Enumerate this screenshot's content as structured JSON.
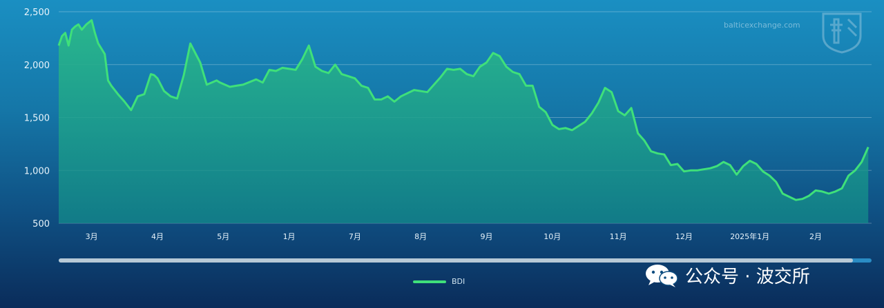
{
  "watermark": {
    "text": "balticexchange.com",
    "logo_icon": "baltic-exchange-logo-icon"
  },
  "legend": {
    "label": "BDI",
    "color": "#3fe07a"
  },
  "footer": {
    "wechat_text": "公众号 · 波交所",
    "icon": "wechat-icon"
  },
  "chart_data": {
    "type": "area",
    "ylim": [
      500,
      2500
    ],
    "yticks": [
      500,
      1000,
      1500,
      2000,
      2500
    ],
    "ytick_labels": [
      "500",
      "1,000",
      "1,500",
      "2,000",
      "2,500"
    ],
    "xlim": [
      0,
      12.35
    ],
    "xticks": [
      {
        "pos": 0.5,
        "label": "3月"
      },
      {
        "pos": 1.5,
        "label": "4月"
      },
      {
        "pos": 2.5,
        "label": "5月"
      },
      {
        "pos": 3.5,
        "label": "1月"
      },
      {
        "pos": 4.5,
        "label": "7月"
      },
      {
        "pos": 5.5,
        "label": "8月"
      },
      {
        "pos": 6.5,
        "label": "9月"
      },
      {
        "pos": 7.5,
        "label": "10月"
      },
      {
        "pos": 8.5,
        "label": "11月"
      },
      {
        "pos": 9.5,
        "label": "12月"
      },
      {
        "pos": 10.5,
        "label": "2025年1月"
      },
      {
        "pos": 11.5,
        "label": "2月"
      }
    ],
    "series": [
      {
        "name": "BDI",
        "color": "#3fe07a",
        "x": [
          0.0,
          0.05,
          0.1,
          0.15,
          0.2,
          0.25,
          0.3,
          0.35,
          0.42,
          0.5,
          0.55,
          0.6,
          0.7,
          0.75,
          0.8,
          0.9,
          1.0,
          1.1,
          1.2,
          1.3,
          1.4,
          1.45,
          1.5,
          1.6,
          1.7,
          1.8,
          1.9,
          2.0,
          2.1,
          2.15,
          2.25,
          2.4,
          2.45,
          2.6,
          2.7,
          2.8,
          3.0,
          3.1,
          3.2,
          3.3,
          3.4,
          3.5,
          3.6,
          3.7,
          3.8,
          3.9,
          4.0,
          4.1,
          4.2,
          4.3,
          4.4,
          4.5,
          4.6,
          4.7,
          4.8,
          4.9,
          5.0,
          5.1,
          5.2,
          5.4,
          5.6,
          5.8,
          5.9,
          6.0,
          6.1,
          6.2,
          6.3,
          6.4,
          6.5,
          6.6,
          6.7,
          6.8,
          6.9,
          7.0,
          7.1,
          7.2,
          7.3,
          7.4,
          7.5,
          7.6,
          7.7,
          7.8,
          7.9,
          8.0,
          8.1,
          8.2,
          8.3,
          8.4,
          8.5,
          8.6,
          8.7,
          8.8,
          8.9,
          9.0,
          9.1,
          9.2,
          9.3,
          9.4,
          9.5,
          9.6,
          9.7,
          9.8,
          9.9,
          10.0,
          10.1,
          10.2,
          10.3,
          10.4,
          10.5,
          10.6,
          10.7,
          10.8,
          10.9,
          11.0,
          11.1,
          11.2,
          11.3,
          11.4,
          11.5,
          11.6,
          11.7,
          11.8,
          11.9,
          12.0,
          12.1,
          12.2,
          12.3
        ],
        "values": [
          2180,
          2270,
          2300,
          2180,
          2330,
          2360,
          2380,
          2330,
          2380,
          2420,
          2300,
          2200,
          2100,
          1850,
          1800,
          1720,
          1650,
          1570,
          1700,
          1720,
          1910,
          1900,
          1870,
          1750,
          1700,
          1680,
          1900,
          2200,
          2080,
          2020,
          1810,
          1850,
          1830,
          1790,
          1800,
          1810,
          1860,
          1830,
          1950,
          1940,
          1970,
          1960,
          1950,
          2050,
          2180,
          1980,
          1940,
          1920,
          2000,
          1910,
          1890,
          1870,
          1800,
          1780,
          1670,
          1670,
          1700,
          1650,
          1700,
          1760,
          1740,
          1880,
          1960,
          1950,
          1960,
          1910,
          1890,
          1980,
          2020,
          2110,
          2080,
          1980,
          1930,
          1910,
          1800,
          1800,
          1600,
          1550,
          1430,
          1390,
          1400,
          1380,
          1420,
          1460,
          1540,
          1640,
          1780,
          1740,
          1560,
          1520,
          1590,
          1350,
          1280,
          1180,
          1160,
          1150,
          1050,
          1060,
          990,
          1000,
          1000,
          1010,
          1020,
          1040,
          1080,
          1050,
          960,
          1040,
          1090,
          1060,
          990,
          950,
          890,
          780,
          750,
          720,
          730,
          760,
          810,
          800,
          780,
          800,
          830,
          950,
          1000,
          1080,
          1220
        ]
      }
    ]
  }
}
